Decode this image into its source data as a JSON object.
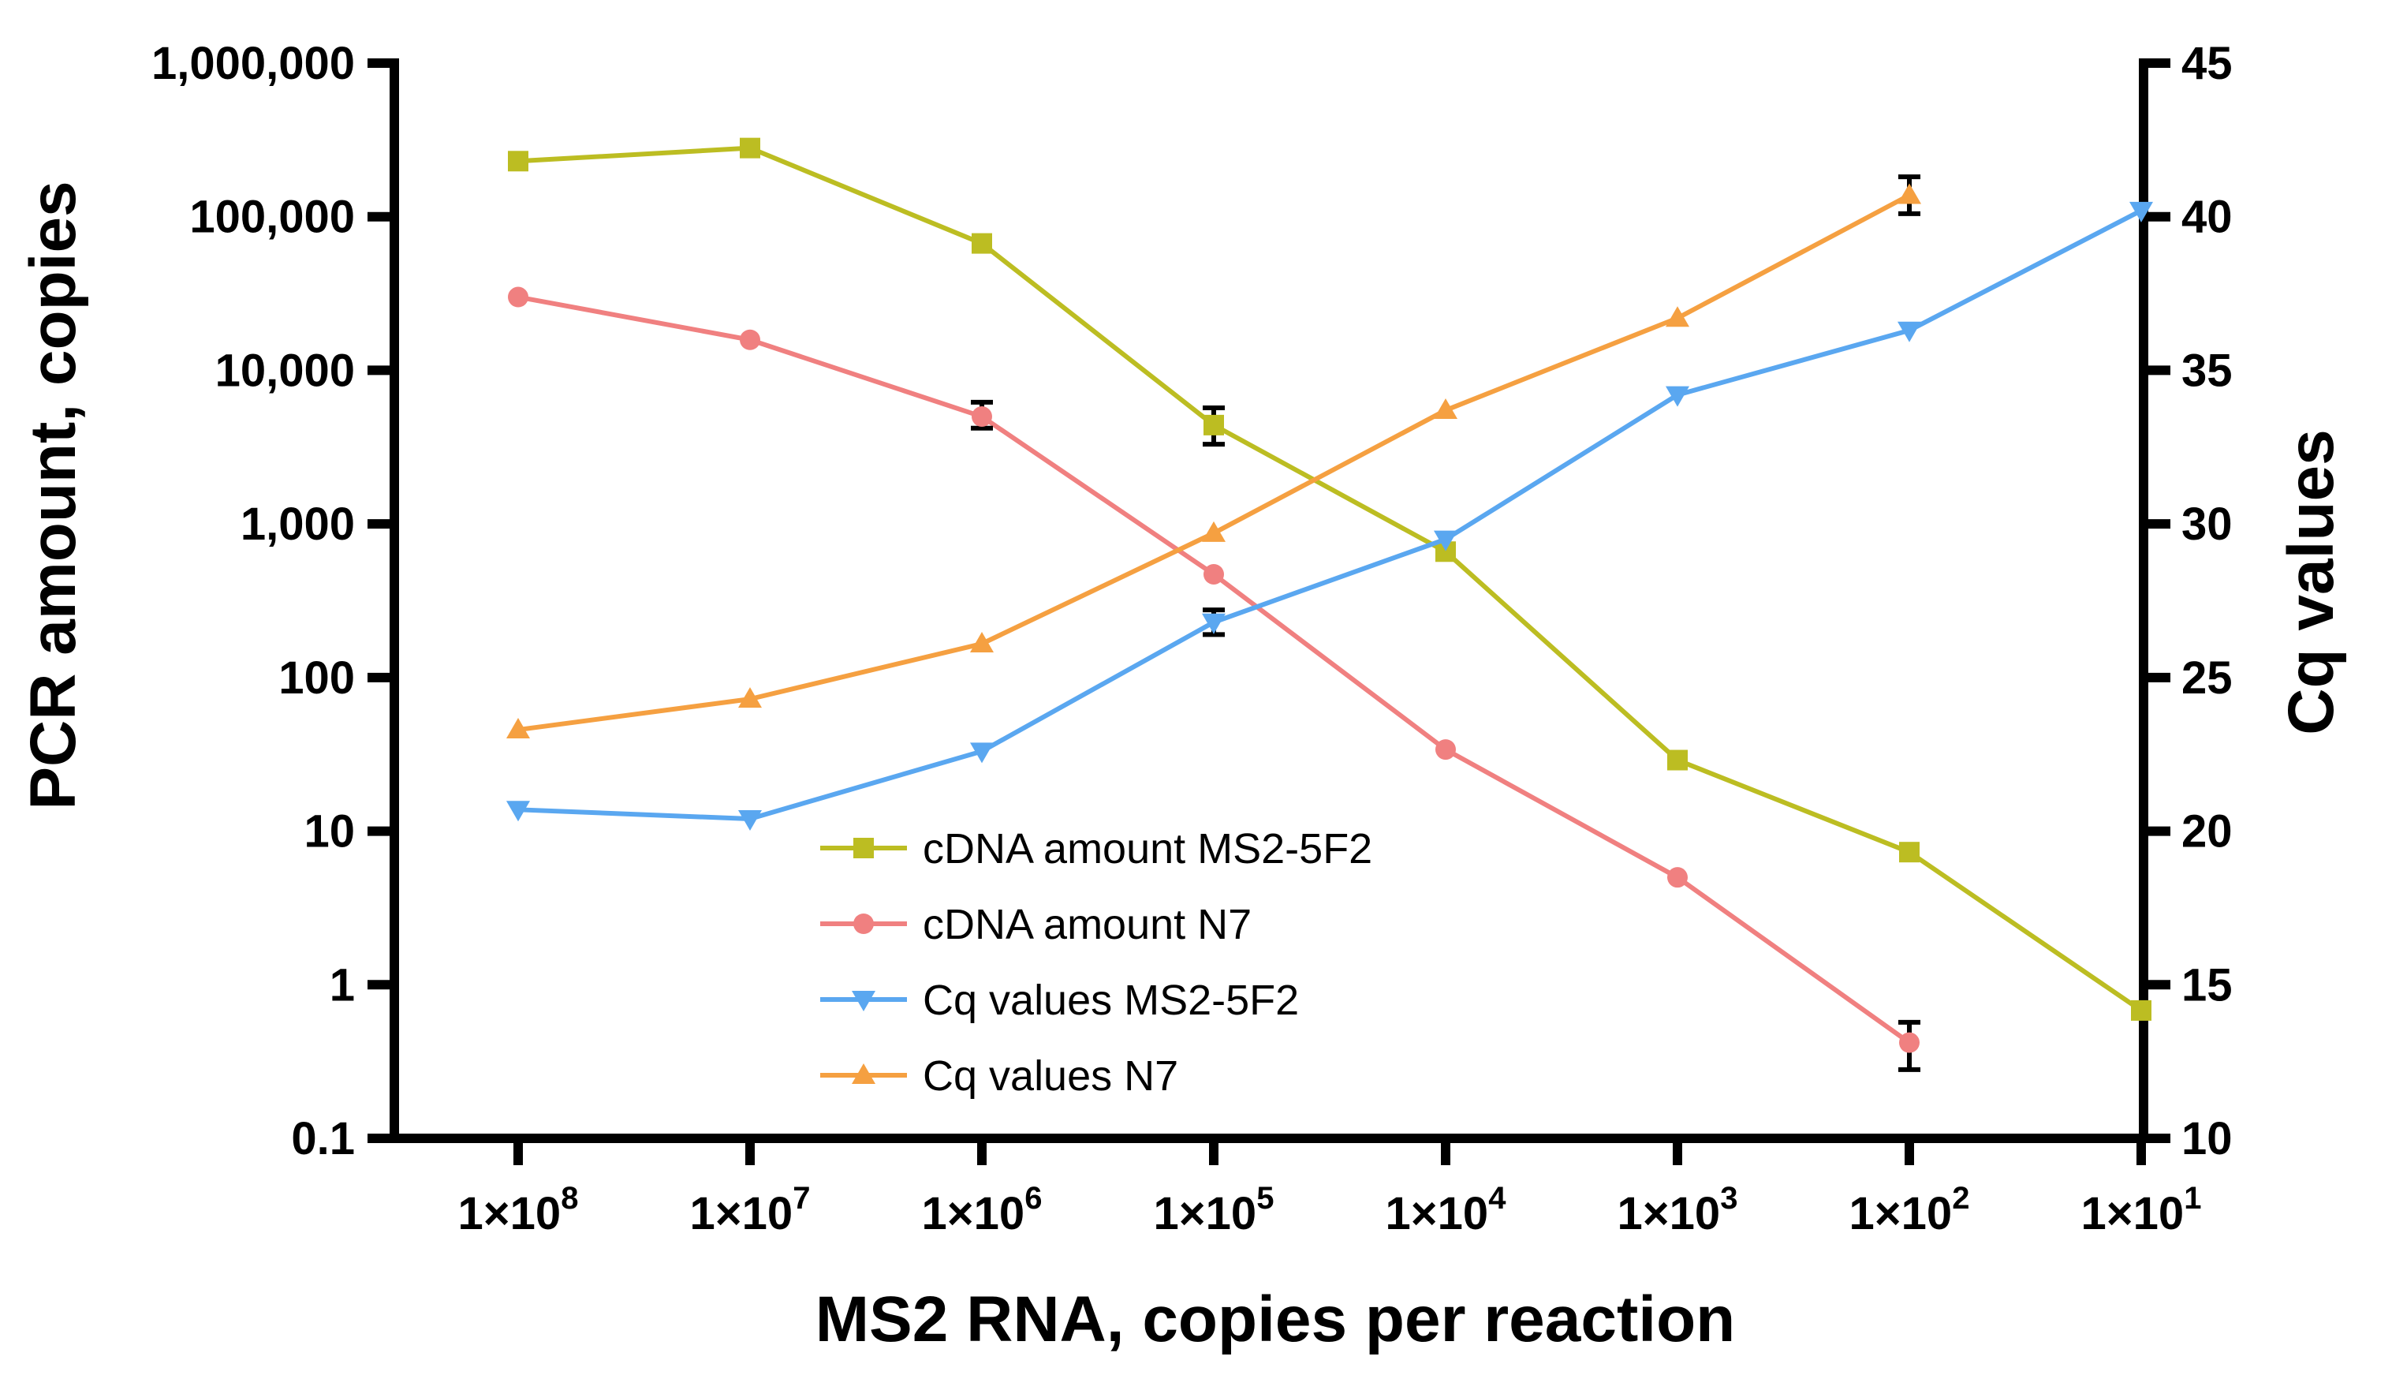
{
  "chart_data": {
    "type": "line",
    "title": "",
    "xlabel": "MS2 RNA, copies per reaction",
    "ylabel_left": "PCR amount, copies",
    "ylabel_right": "Cq values",
    "x": [
      "1×10^8",
      "1×10^7",
      "1×10^6",
      "1×10^5",
      "1×10^4",
      "1×10^3",
      "1×10^2",
      "1×10^1"
    ],
    "x_tick_labels": [
      {
        "base": "1×10",
        "exp": "8"
      },
      {
        "base": "1×10",
        "exp": "7"
      },
      {
        "base": "1×10",
        "exp": "6"
      },
      {
        "base": "1×10",
        "exp": "5"
      },
      {
        "base": "1×10",
        "exp": "4"
      },
      {
        "base": "1×10",
        "exp": "3"
      },
      {
        "base": "1×10",
        "exp": "2"
      },
      {
        "base": "1×10",
        "exp": "1"
      }
    ],
    "y_left": {
      "scale": "log",
      "range": [
        0.1,
        1000000
      ],
      "ticks": [
        0.1,
        1,
        10,
        100,
        1000,
        10000,
        100000,
        1000000
      ],
      "tick_labels": [
        "0.1",
        "1",
        "10",
        "100",
        "1,000",
        "10,000",
        "100,000",
        "1,000,000"
      ]
    },
    "y_right": {
      "scale": "linear",
      "range": [
        10,
        45
      ],
      "ticks": [
        10,
        15,
        20,
        25,
        30,
        35,
        40,
        45
      ],
      "tick_labels": [
        "10",
        "15",
        "20",
        "25",
        "30",
        "35",
        "40",
        "45"
      ]
    },
    "series": [
      {
        "name": "cDNA amount MS2-5F2",
        "axis": "left",
        "color": "#bcbd22",
        "marker": "square",
        "values": [
          230000,
          280000,
          67000,
          4400,
          660,
          29,
          7.3,
          0.68
        ],
        "errors": [
          null,
          null,
          null,
          [
            3300,
            5700
          ],
          null,
          null,
          null,
          null
        ]
      },
      {
        "name": "cDNA amount N7",
        "axis": "left",
        "color": "#f08080",
        "marker": "circle",
        "values": [
          30000,
          15800,
          5000,
          470,
          34,
          5,
          0.42,
          null
        ],
        "errors": [
          null,
          null,
          [
            4200,
            6200
          ],
          null,
          null,
          null,
          [
            0.28,
            0.57
          ],
          null
        ]
      },
      {
        "name": "Cq values MS2-5F2",
        "axis": "right",
        "color": "#5aa7f0",
        "marker": "triangle-down",
        "values": [
          20.7,
          20.4,
          22.6,
          26.8,
          29.5,
          34.2,
          36.3,
          40.2
        ],
        "errors": [
          null,
          null,
          null,
          [
            26.4,
            27.2
          ],
          null,
          null,
          null,
          null
        ]
      },
      {
        "name": "Cq values N7",
        "axis": "right",
        "color": "#f5a041",
        "marker": "triangle-up",
        "values": [
          23.3,
          24.3,
          26.1,
          29.7,
          33.7,
          36.7,
          40.7,
          null
        ],
        "errors": [
          null,
          null,
          null,
          null,
          null,
          null,
          [
            40.1,
            41.3
          ],
          null
        ]
      }
    ],
    "legend": {
      "placement": "bottom-center",
      "entries": [
        "cDNA amount MS2-5F2",
        "cDNA amount N7",
        "Cq values MS2-5F2",
        "Cq values N7"
      ]
    },
    "grid": false
  }
}
